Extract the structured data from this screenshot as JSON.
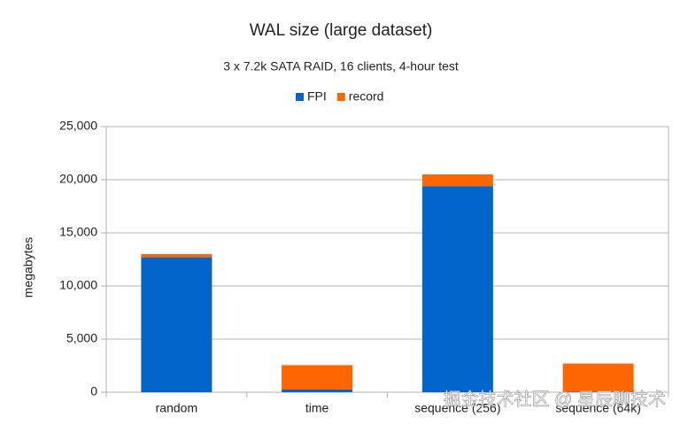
{
  "chart_data": {
    "type": "stacked_bar",
    "title": "WAL size (large dataset)",
    "subtitle": "3 x 7.2k SATA RAID, 16 clients, 4-hour test",
    "y_label": "megabytes",
    "categories": [
      "random",
      "time",
      "sequence (256)",
      "sequence (64k)"
    ],
    "series": [
      {
        "name": "FPI",
        "color": "#0066cc",
        "values": [
          12700,
          250,
          19400,
          50
        ]
      },
      {
        "name": "record",
        "color": "#ff6600",
        "values": [
          300,
          2300,
          1100,
          2650
        ]
      }
    ],
    "ylim": [
      0,
      25000
    ],
    "yticks": [
      0,
      {
        "value": 5000,
        "label": "5,000"
      },
      {
        "value": 10000,
        "label": "10,000"
      },
      {
        "value": 15000,
        "label": "15,000"
      },
      {
        "value": 20000,
        "label": "20,000"
      },
      {
        "value": 25000,
        "label": "25,000"
      }
    ],
    "grid": true,
    "legend": "top",
    "watermark": "掘金技术社区 @ 星辰聊技术"
  }
}
